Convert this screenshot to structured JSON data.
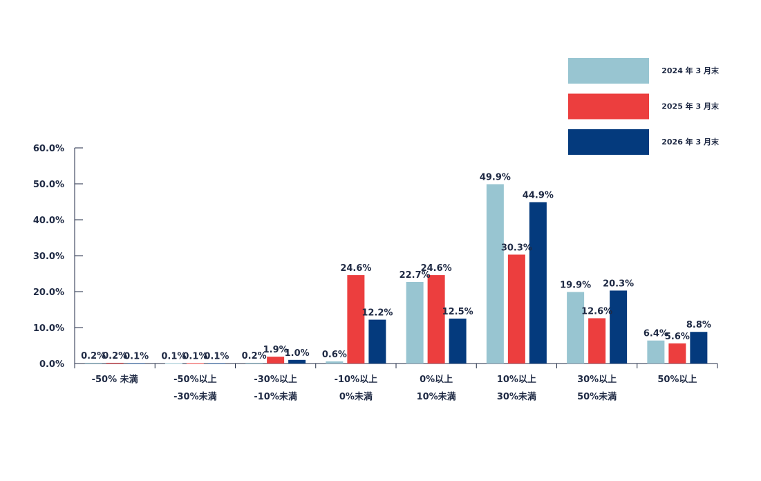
{
  "chart_data": {
    "type": "bar",
    "categories": [
      [
        "-50% 未満"
      ],
      [
        "-50%以上",
        "-30%未満"
      ],
      [
        "-30%以上",
        "-10%未満"
      ],
      [
        "-10%以上",
        "0%未満"
      ],
      [
        "0%以上",
        "10%未満"
      ],
      [
        "10%以上",
        "30%未満"
      ],
      [
        "30%以上",
        "50%未満"
      ],
      [
        "50%以上"
      ]
    ],
    "series": [
      {
        "name": "2024 年 3 月末",
        "color": "#98c5d1",
        "values": [
          0.2,
          0.1,
          0.2,
          0.6,
          22.7,
          49.9,
          19.9,
          6.4
        ],
        "labels": [
          "0.2%",
          "0.1%",
          "0.2%",
          "0.6%",
          "22.7%",
          "49.9%",
          "19.9%",
          "6.4%"
        ]
      },
      {
        "name": "2025 年 3 月末",
        "color": "#ec3e3e",
        "values": [
          0.2,
          0.1,
          1.9,
          24.6,
          24.6,
          30.3,
          12.6,
          5.6
        ],
        "labels": [
          "0.2%",
          "0.1%",
          "1.9%",
          "24.6%",
          "24.6%",
          "30.3%",
          "12.6%",
          "5.6%"
        ]
      },
      {
        "name": "2026 年 3 月末",
        "color": "#043a7d",
        "values": [
          0.1,
          0.1,
          1.0,
          12.2,
          12.5,
          44.9,
          20.3,
          8.8
        ],
        "labels": [
          "0.1%",
          "0.1%",
          "1.0%",
          "12.2%",
          "12.5%",
          "44.9%",
          "20.3%",
          "8.8%"
        ]
      }
    ],
    "yticks": [
      "0.0%",
      "10.0%",
      "20.0%",
      "30.0%",
      "40.0%",
      "50.0%",
      "60.0%"
    ],
    "ylim": [
      0,
      60
    ],
    "legend_position": "top-right",
    "grid": false
  }
}
